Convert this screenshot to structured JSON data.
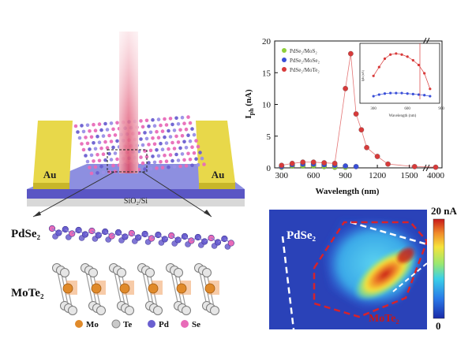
{
  "device": {
    "electrode_left": "Au",
    "electrode_right": "Au",
    "substrate": "SiO₂/Si"
  },
  "crystal": {
    "top_label": "PdSe₂",
    "bottom_label": "MoTe₂"
  },
  "legend_atoms": [
    {
      "name": "Mo",
      "color": "#e08a2a"
    },
    {
      "name": "Te",
      "color": "#c9c9c9"
    },
    {
      "name": "Pd",
      "color": "#6a5fd0"
    },
    {
      "name": "Se",
      "color": "#e86bb8"
    }
  ],
  "map": {
    "scale_max": "20 nA",
    "scale_min": "0",
    "label_top": "PdSe₂",
    "label_bottom": "MoTe₂"
  },
  "chart_data": [
    {
      "type": "scatter",
      "xlabel": "Wavelength (nm)",
      "ylabel": "I",
      "ylabel_sub": "ph",
      "ylabel_unit": " (nA)",
      "ylim": [
        0,
        20
      ],
      "yticks": [
        "0",
        "5",
        "10",
        "15",
        "20"
      ],
      "xticks": [
        "300",
        "600",
        "900",
        "1200",
        "1500",
        "4000"
      ],
      "x_break_between": [
        1500,
        4000
      ],
      "legend_position": "top-left",
      "series": [
        {
          "name": "PdSe₂/MoS₂",
          "color": "#8fcf3a",
          "x": [
            300,
            400,
            500,
            600,
            700,
            800,
            900
          ],
          "y": [
            0.1,
            0.3,
            0.3,
            0.3,
            0.2,
            0.1,
            0.1
          ]
        },
        {
          "name": "PdSe₂/MoSe₂",
          "color": "#3a4fd8",
          "x": [
            300,
            400,
            500,
            600,
            700,
            800,
            900,
            1000
          ],
          "y": [
            0.2,
            0.5,
            0.6,
            0.6,
            0.5,
            0.4,
            0.3,
            0.2
          ]
        },
        {
          "name": "PdSe₂/MoTe₂",
          "color": "#d83a3a",
          "x": [
            300,
            400,
            500,
            600,
            700,
            800,
            900,
            950,
            1000,
            1050,
            1100,
            1200,
            1300,
            1550,
            4000
          ],
          "y": [
            0.4,
            0.7,
            0.9,
            0.9,
            0.8,
            0.7,
            12.5,
            18.0,
            8.5,
            6.0,
            3.2,
            1.8,
            0.6,
            0.2,
            0.1
          ]
        }
      ]
    },
    {
      "type": "line",
      "inset": true,
      "xlabel": "Wavelength (nm)",
      "ylabel": "I",
      "ylabel_sub": "ph",
      "ylabel_unit": " (nA)",
      "xticks": [
        "300",
        "600",
        "900"
      ],
      "series": [
        {
          "name": "PdSe₂/MoTe₂",
          "color": "#d83a3a",
          "x": [
            300,
            350,
            400,
            450,
            500,
            550,
            600,
            650,
            700,
            750,
            800
          ],
          "y": [
            0.45,
            0.62,
            0.78,
            0.86,
            0.88,
            0.86,
            0.82,
            0.75,
            0.66,
            0.5,
            0.2
          ]
        },
        {
          "name": "PdSe₂/MoSe₂",
          "color": "#3a4fd8",
          "x": [
            300,
            350,
            400,
            450,
            500,
            550,
            600,
            650,
            700,
            750,
            800
          ],
          "y": [
            0.06,
            0.09,
            0.11,
            0.12,
            0.12,
            0.12,
            0.11,
            0.1,
            0.09,
            0.08,
            0.06
          ]
        }
      ]
    }
  ]
}
